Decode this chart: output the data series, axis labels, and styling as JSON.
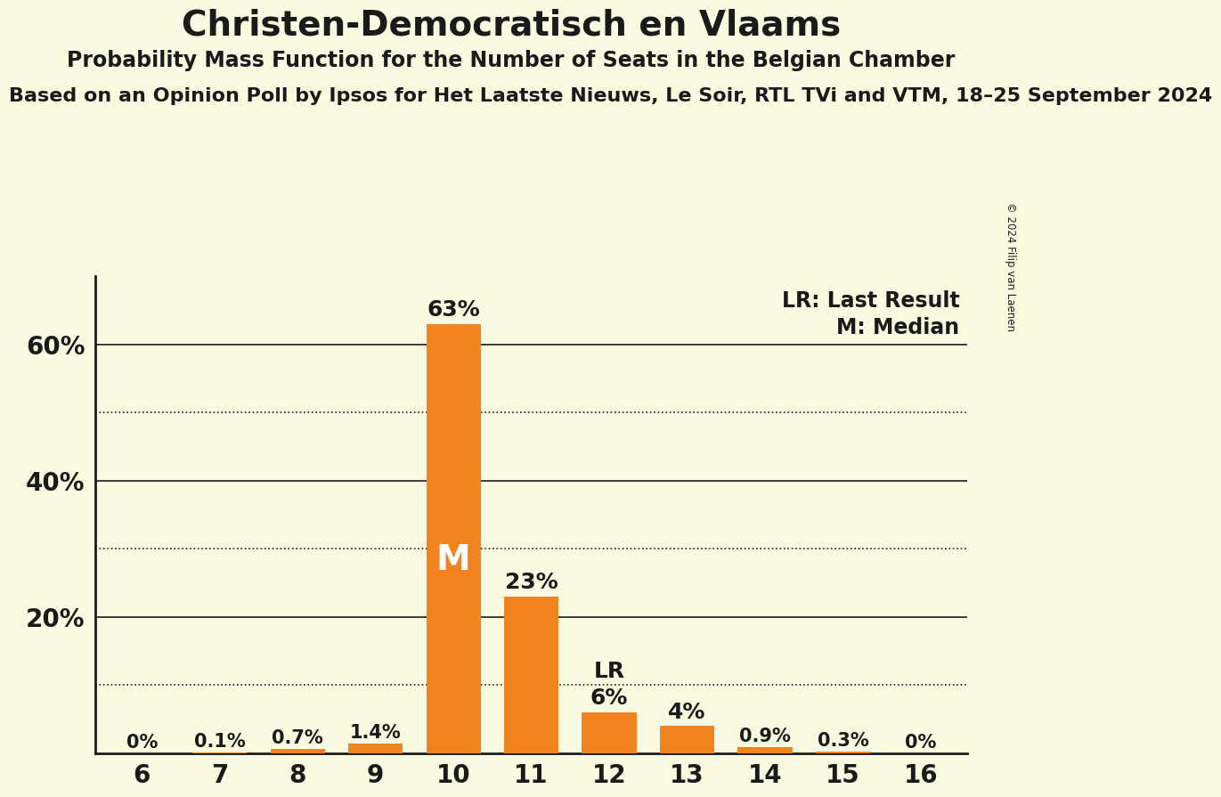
{
  "title": "Christen-Democratisch en Vlaams",
  "subtitle": "Probability Mass Function for the Number of Seats in the Belgian Chamber",
  "subtitle2": "Based on an Opinion Poll by Ipsos for Het Laatste Nieuws, Le Soir, RTL TVi and VTM, 18–25 September 2024",
  "copyright": "© 2024 Filip van Laenen",
  "categories": [
    6,
    7,
    8,
    9,
    10,
    11,
    12,
    13,
    14,
    15,
    16
  ],
  "values": [
    0.0,
    0.1,
    0.7,
    1.4,
    63.0,
    23.0,
    6.0,
    4.0,
    0.9,
    0.3,
    0.0
  ],
  "bar_color": "#F28420",
  "background_color": "#FAFAE0",
  "text_color": "#1A1A1A",
  "median_seat": 10,
  "last_result_seat": 12,
  "legend_lr": "LR: Last Result",
  "legend_m": "M: Median",
  "median_label": "M",
  "lr_label": "LR",
  "ylim": [
    0,
    70
  ],
  "bar_labels": [
    "0%",
    "0.1%",
    "0.7%",
    "1.4%",
    "63%",
    "23%",
    "6%",
    "4%",
    "0.9%",
    "0.3%",
    "0%"
  ]
}
